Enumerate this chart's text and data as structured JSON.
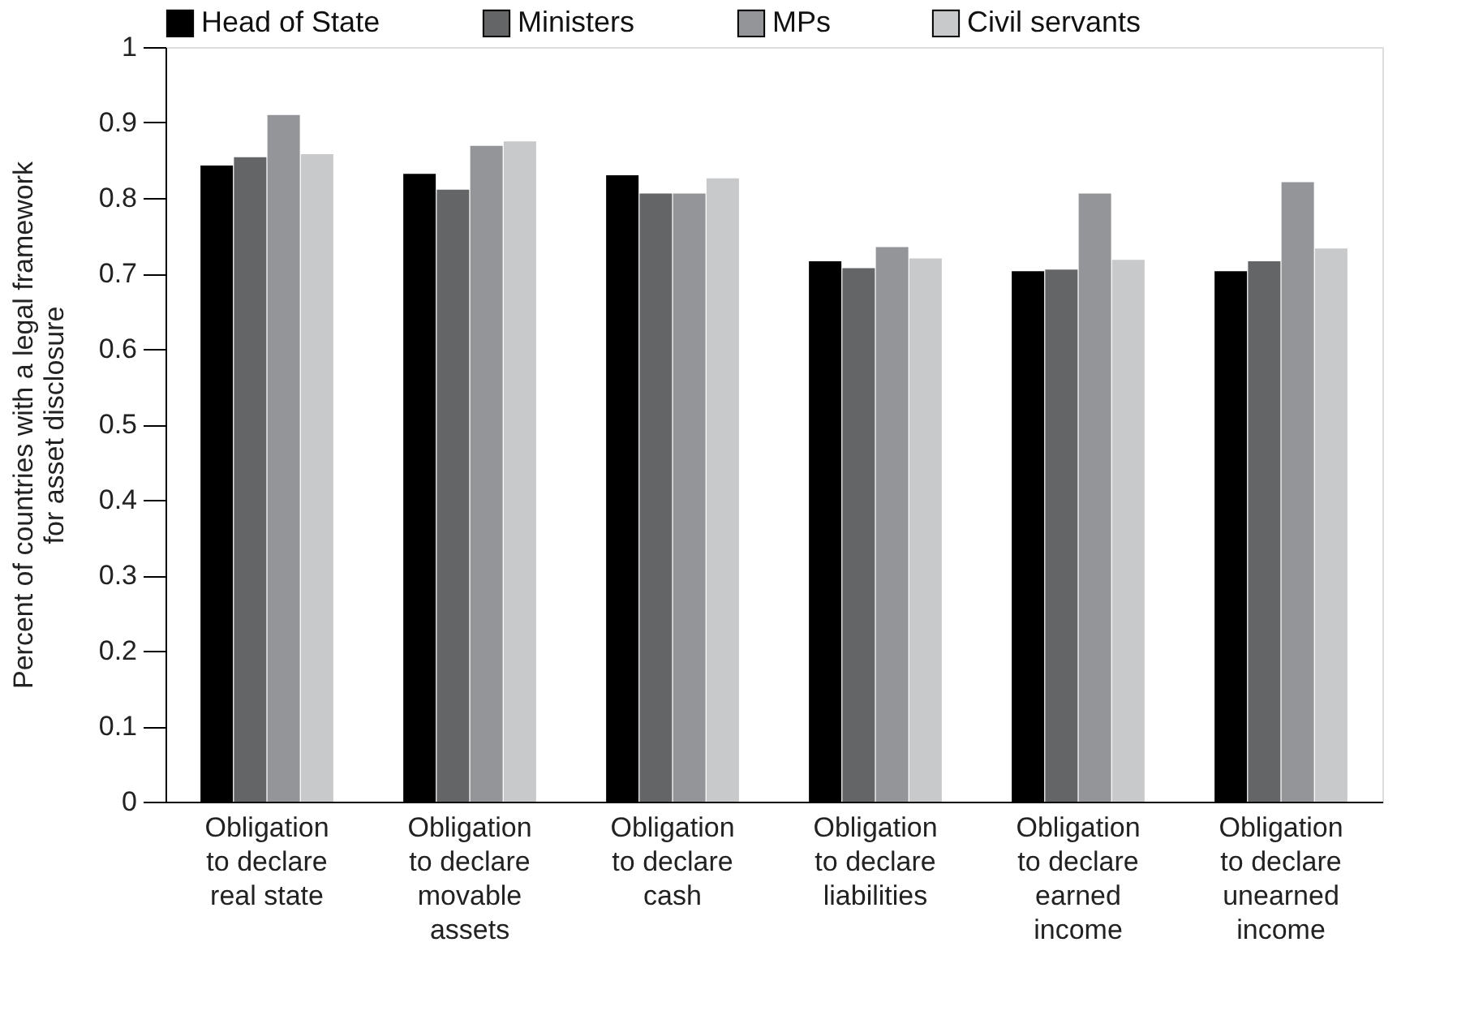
{
  "chart_data": {
    "type": "bar",
    "categories": [
      "Obligation\nto declare\nreal state",
      "Obligation\nto declare\nmovable\nassets",
      "Obligation\nto declare\ncash",
      "Obligation\nto declare\nliabilities",
      "Obligation\nto declare\nearned\nincome",
      "Obligation\nto declare\nunearned\nincome"
    ],
    "series": [
      {
        "name": "Head of State",
        "color": "#000000",
        "values": [
          0.843,
          0.832,
          0.83,
          0.716,
          0.703,
          0.703
        ]
      },
      {
        "name": "Ministers",
        "color": "#646567",
        "values": [
          0.854,
          0.811,
          0.806,
          0.707,
          0.705,
          0.716
        ]
      },
      {
        "name": "MPs",
        "color": "#949599",
        "values": [
          0.91,
          0.869,
          0.806,
          0.735,
          0.806,
          0.821
        ]
      },
      {
        "name": "Civil servants",
        "color": "#c8c9cb",
        "values": [
          0.858,
          0.875,
          0.826,
          0.72,
          0.718,
          0.733
        ]
      }
    ],
    "ylabel": "Percent of countries with a legal framework\nfor asset disclosure",
    "ylim": [
      0,
      1
    ],
    "yticks": [
      0,
      0.1,
      0.2,
      0.3,
      0.4,
      0.5,
      0.6,
      0.7,
      0.8,
      0.9,
      1
    ],
    "grid": false,
    "legend": "top"
  }
}
